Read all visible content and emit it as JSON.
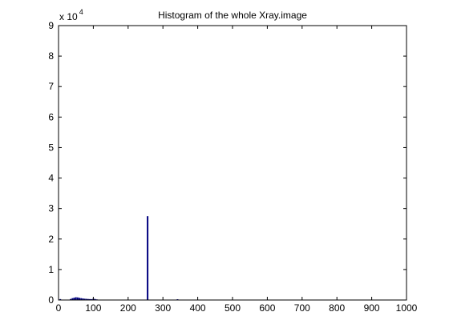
{
  "chart_data": {
    "type": "bar",
    "title": "Histogram of the whole Xray.image",
    "xlabel": "",
    "ylabel": "",
    "xlim": [
      0,
      1000
    ],
    "ylim": [
      0,
      90000
    ],
    "x_ticks": [
      "0",
      "100",
      "200",
      "300",
      "400",
      "500",
      "600",
      "700",
      "800",
      "900",
      "1000"
    ],
    "y_ticks": [
      "0",
      "1",
      "2",
      "3",
      "4",
      "5",
      "6",
      "7",
      "8",
      "9"
    ],
    "y_exponent_base": "x 10",
    "y_exponent_power": "4",
    "grid": false,
    "bar_color": "#00007f",
    "bins": [
      {
        "x": 5,
        "y": 300
      },
      {
        "x": 35,
        "y": 350
      },
      {
        "x": 40,
        "y": 600
      },
      {
        "x": 45,
        "y": 750
      },
      {
        "x": 50,
        "y": 900
      },
      {
        "x": 55,
        "y": 850
      },
      {
        "x": 60,
        "y": 700
      },
      {
        "x": 65,
        "y": 600
      },
      {
        "x": 70,
        "y": 500
      },
      {
        "x": 75,
        "y": 420
      },
      {
        "x": 80,
        "y": 380
      },
      {
        "x": 85,
        "y": 330
      },
      {
        "x": 90,
        "y": 300
      },
      {
        "x": 95,
        "y": 280
      },
      {
        "x": 100,
        "y": 450
      },
      {
        "x": 105,
        "y": 320
      },
      {
        "x": 110,
        "y": 200
      },
      {
        "x": 256,
        "y": 27500
      },
      {
        "x": 342,
        "y": 250
      }
    ]
  }
}
